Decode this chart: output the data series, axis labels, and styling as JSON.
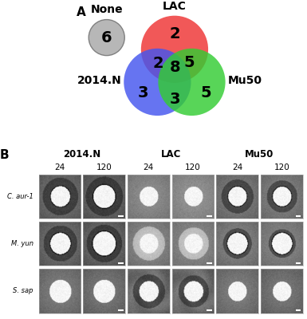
{
  "panel_A_label": "A",
  "panel_B_label": "B",
  "none_label": "None",
  "none_value": "6",
  "lac_label": "LAC",
  "n2014_label": "2014.N",
  "mu50_label": "Mu50",
  "lac_only": "2",
  "center_val": "8",
  "lac_mu50": "5",
  "n2014_lac": "2",
  "n2014_mu50": "3",
  "mu50_only": "5",
  "n2014_only": "3",
  "bottom_intersect": "3",
  "none_circle_color": "#b0b0b0",
  "lac_color": "#ee3333",
  "n2014_color": "#4455ee",
  "mu50_color": "#33cc33",
  "col_headers": [
    "2014.N",
    "LAC",
    "Mu50"
  ],
  "time_headers": [
    "24",
    "120",
    "24",
    "120",
    "24",
    "120"
  ],
  "row_headers": [
    "C. aur-1",
    "M. yun",
    "S. sap"
  ],
  "bg_color": "#ffffff",
  "venn_alpha": 0.82
}
